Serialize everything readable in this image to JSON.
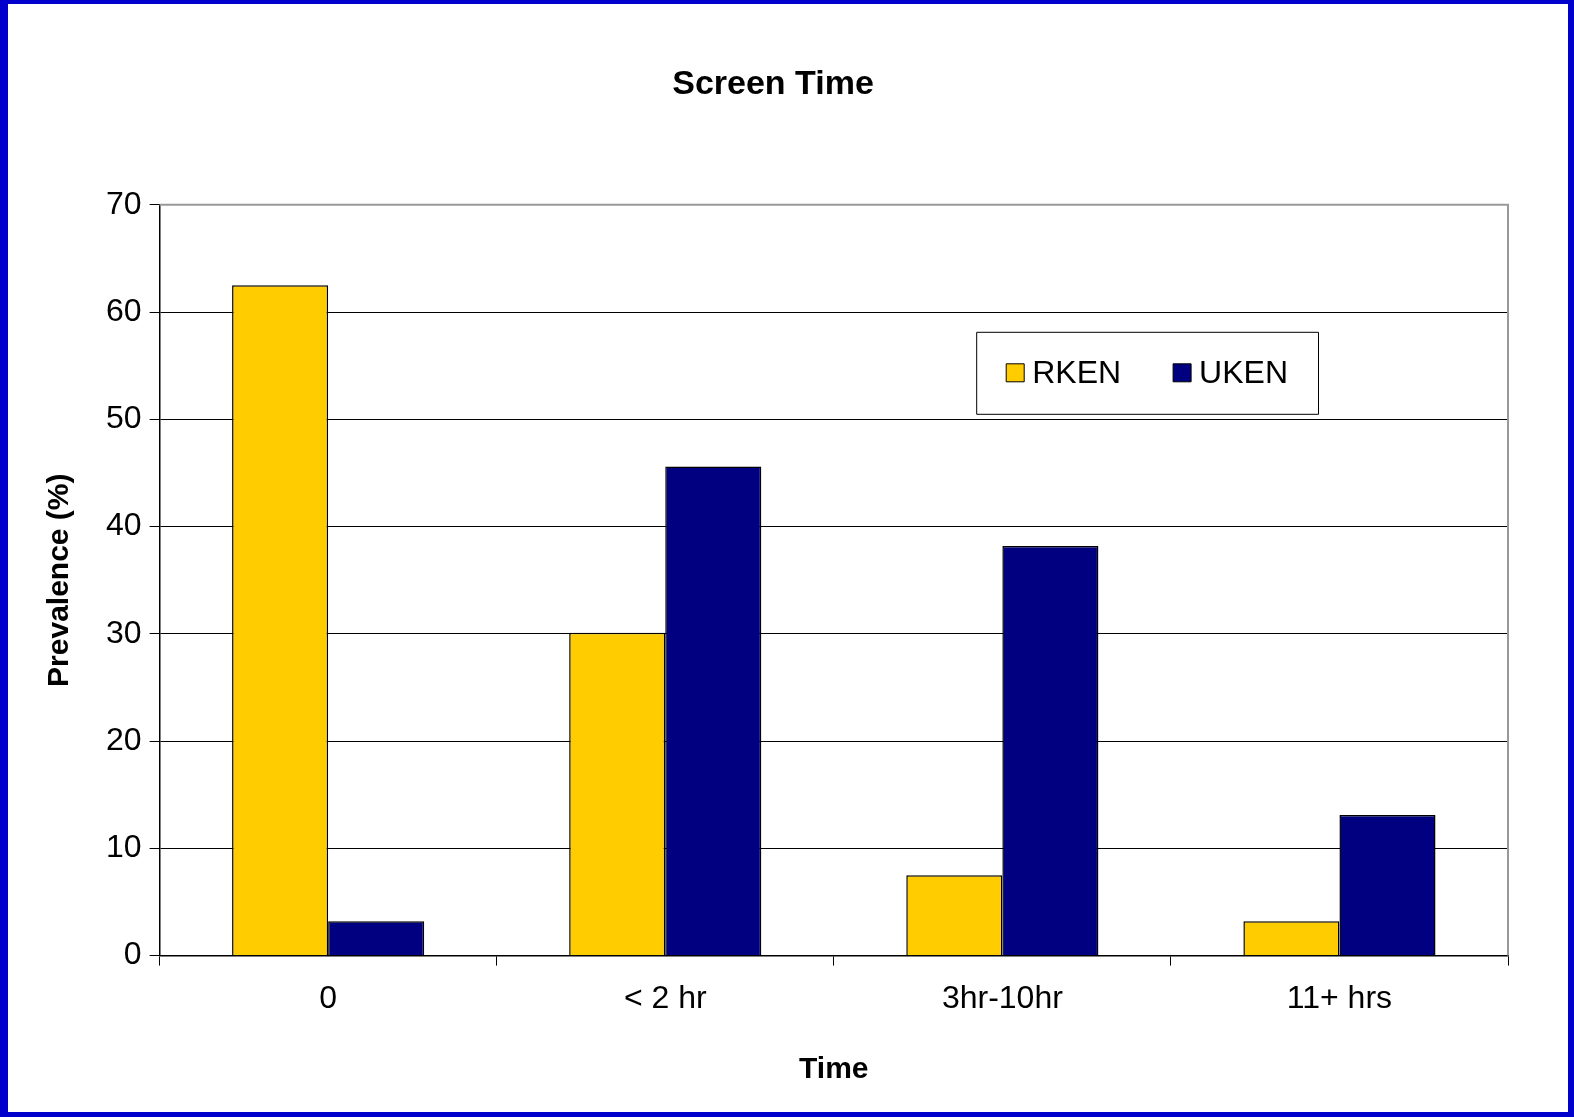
{
  "chart_data": {
    "type": "bar",
    "title": "Screen Time",
    "xlabel": "Time",
    "ylabel": "Prevalence (%)",
    "categories": [
      "0",
      "< 2 hr",
      "3hr-10hr",
      "11+ hrs"
    ],
    "series": [
      {
        "name": "RKEN",
        "color": "#ffcc00",
        "values": [
          62.5,
          30.1,
          7.5,
          3.2
        ]
      },
      {
        "name": "UKEN",
        "color": "#000080",
        "values": [
          3.2,
          45.6,
          38.2,
          13.1
        ]
      }
    ],
    "ylim": [
      0,
      70
    ],
    "yticks": [
      0,
      10,
      20,
      30,
      40,
      50,
      60,
      70
    ],
    "grid": "y",
    "legend": "top right"
  }
}
